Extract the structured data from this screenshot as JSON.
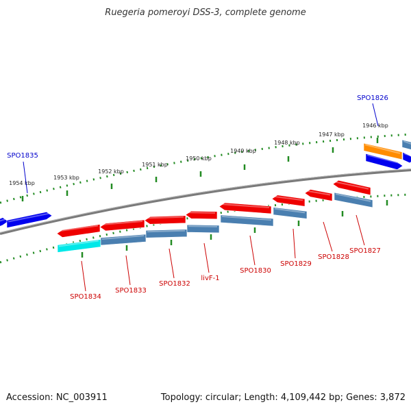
{
  "title": "Ruegeria pomeroyi DSS-3, complete genome",
  "footer": {
    "accession": "Accession: NC_003911",
    "summary": "Topology: circular; Length: 4,109,442 bp; Genes: 3,872"
  },
  "colors": {
    "forward_gene": "#0000ee",
    "reverse_gene": "#ee0000",
    "cds_steel": "#4a7fb0",
    "cds_cyan": "#00e8e8",
    "cds_orange": "#ff8c00",
    "backbone": "#808080",
    "ticks": "#228b22",
    "label_forward": "#0000cc",
    "label_reverse": "#cc0000"
  },
  "scale_labels": [
    "1954 kbp",
    "1953 kbp",
    "1952 kbp",
    "1951 kbp",
    "1950 kbp",
    "1949 kbp",
    "1948 kbp",
    "1947 kbp",
    "1946 kbp"
  ],
  "forward_labels": [
    "SPO1835",
    "SPO1826"
  ],
  "reverse_labels": [
    "SPO1834",
    "SPO1833",
    "SPO1832",
    "livF-1",
    "SPO1830",
    "SPO1829",
    "SPO1828",
    "SPO1827"
  ]
}
